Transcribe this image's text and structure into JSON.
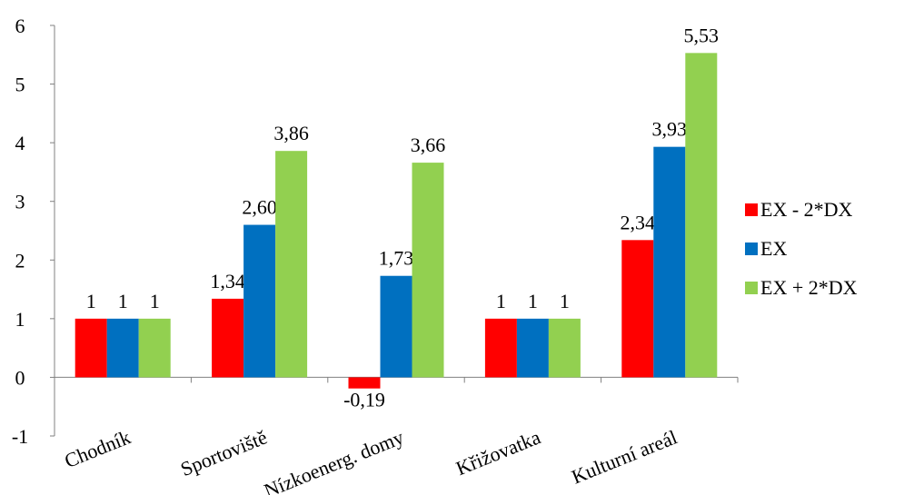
{
  "chart_data": {
    "type": "bar",
    "categories": [
      "Chodník",
      "Sportoviště",
      "Nízkoenerg. domy",
      "Křižovatka",
      "Kulturní areál"
    ],
    "series": [
      {
        "name": "EX - 2*DX",
        "color": "#ff0000",
        "values": [
          1,
          1.34,
          -0.19,
          1,
          2.34
        ],
        "labels": [
          "1",
          "1,34",
          "-0,19",
          "1",
          "2,34"
        ]
      },
      {
        "name": "EX",
        "color": "#0070c0",
        "values": [
          1,
          2.6,
          1.73,
          1,
          3.93
        ],
        "labels": [
          "1",
          "2,60",
          "1,73",
          "1",
          "3,93"
        ]
      },
      {
        "name": "EX + 2*DX",
        "color": "#92d050",
        "values": [
          1,
          3.86,
          3.66,
          1,
          5.53
        ],
        "labels": [
          "1",
          "3,86",
          "3,66",
          "1",
          "5,53"
        ]
      }
    ],
    "yticks": [
      "-1",
      "0",
      "1",
      "2",
      "3",
      "4",
      "5",
      "6"
    ],
    "ylim": [
      -1,
      6
    ],
    "grid": false,
    "legend_position": "right",
    "title": "",
    "xlabel": "",
    "ylabel": ""
  }
}
